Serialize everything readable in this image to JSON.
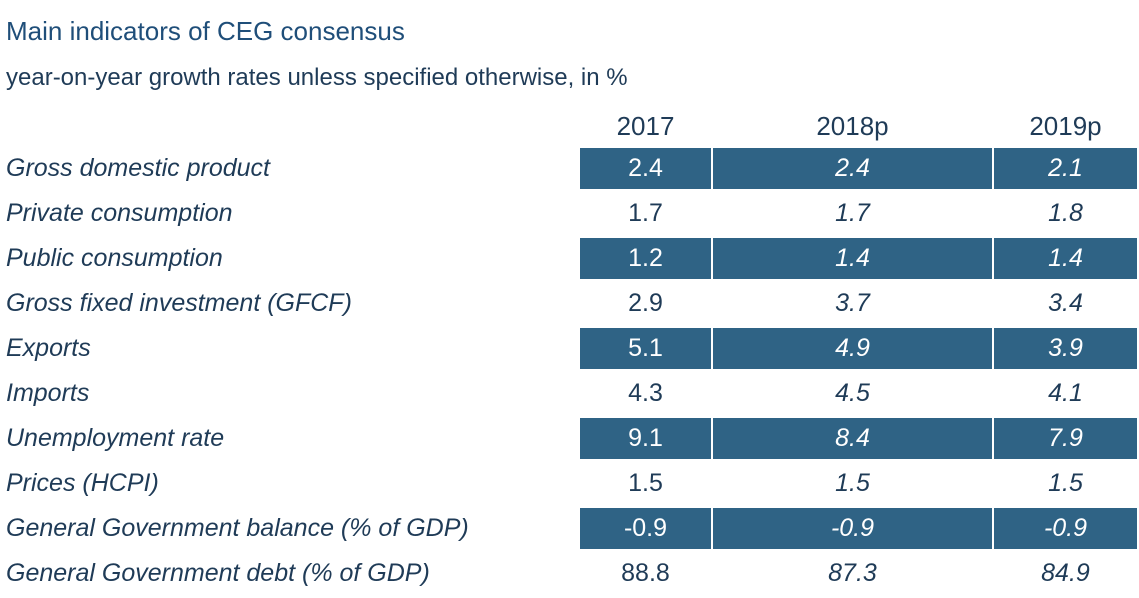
{
  "chart_data": {
    "type": "table",
    "title": "Main indicators of CEG consensus",
    "subtitle": "year-on-year growth rates unless specified otherwise, in %",
    "columns": [
      "2017",
      "2018p",
      "2019p"
    ],
    "rows": [
      {
        "label": "Gross domestic product",
        "values": [
          "2.4",
          "2.4",
          "2.1"
        ]
      },
      {
        "label": "Private consumption",
        "values": [
          "1.7",
          "1.7",
          "1.8"
        ]
      },
      {
        "label": "Public consumption",
        "values": [
          "1.2",
          "1.4",
          "1.4"
        ]
      },
      {
        "label": "Gross fixed investment (GFCF)",
        "values": [
          "2.9",
          "3.7",
          "3.4"
        ]
      },
      {
        "label": "Exports",
        "values": [
          "5.1",
          "4.9",
          "3.9"
        ]
      },
      {
        "label": "Imports",
        "values": [
          "4.3",
          "4.5",
          "4.1"
        ]
      },
      {
        "label": "Unemployment rate",
        "values": [
          "9.1",
          "8.4",
          "7.9"
        ]
      },
      {
        "label": "Prices (HCPI)",
        "values": [
          "1.5",
          "1.5",
          "1.5"
        ]
      },
      {
        "label": "General Government balance (% of GDP)",
        "values": [
          "-0.9",
          "-0.9",
          "-0.9"
        ]
      },
      {
        "label": "General Government debt (% of GDP)",
        "values": [
          "88.8",
          "87.3",
          "84.9"
        ]
      }
    ],
    "shaded_color": "#2f6385",
    "text_color": "#1f3b57"
  }
}
